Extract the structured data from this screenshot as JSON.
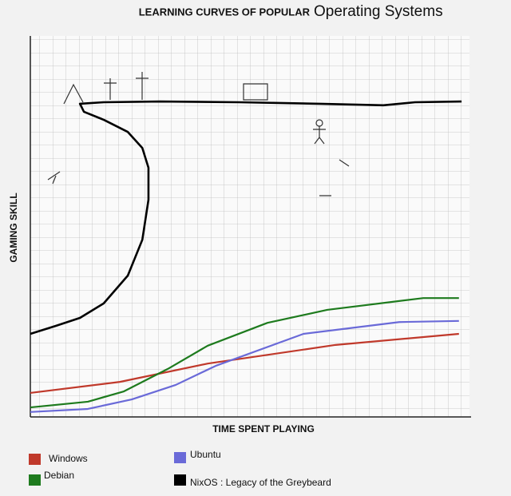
{
  "chart_data": {
    "type": "line",
    "title": "LEARNING CURVES OF POPULAR",
    "subtitle": "Operating Systems",
    "x_label": "TIME SPENT PLAYING",
    "y_label": "GAMING SKILL",
    "xlim": [
      0,
      100
    ],
    "ylim": [
      0,
      100
    ],
    "grid": true,
    "series": [
      {
        "name": "Windows",
        "color": "#c0392b",
        "x": [
          0,
          20.4,
          40.4,
          69.5,
          97.6
        ],
        "values": [
          6.3,
          9.2,
          14.0,
          18.9,
          21.8
        ]
      },
      {
        "name": "Debian",
        "color": "#1e7b1e",
        "x": [
          0,
          13.1,
          21.3,
          31.3,
          40.4,
          54.0,
          67.6,
          89.5,
          97.6
        ],
        "values": [
          2.5,
          4.0,
          6.7,
          12.6,
          18.7,
          24.7,
          28.1,
          31.2,
          31.2
        ]
      },
      {
        "name": "Ubuntu",
        "color": "#6a6ad8",
        "x": [
          0,
          13.1,
          23.1,
          33.1,
          42.2,
          62.2,
          84.0,
          97.6
        ],
        "values": [
          1.3,
          2.1,
          4.6,
          8.4,
          13.4,
          21.8,
          24.9,
          25.2
        ]
      },
      {
        "name": "NixOS : Legacy of the Greybeard",
        "color": "#000000",
        "x": [
          0,
          5.8,
          11.3,
          16.7,
          22.2,
          25.5,
          26.9,
          26.9,
          25.5,
          22.2,
          16.7,
          12.2,
          11.3,
          16.7,
          29.5,
          47.6,
          65.8,
          80.4,
          87.6,
          98.2
        ],
        "values": [
          21.8,
          23.9,
          26.0,
          29.8,
          37.1,
          46.5,
          57.0,
          65.4,
          70.6,
          74.8,
          78.0,
          80.1,
          82.2,
          82.6,
          82.8,
          82.6,
          82.2,
          81.8,
          82.6,
          82.8
        ]
      }
    ]
  }
}
